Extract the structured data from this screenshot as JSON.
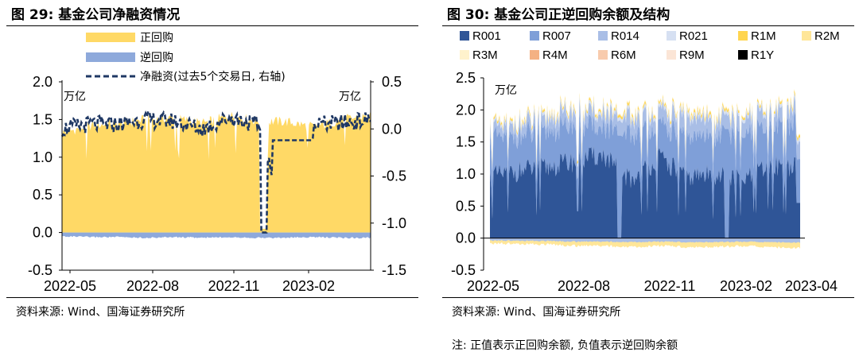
{
  "figures": {
    "left": {
      "title": "图 29:  基金公司净融资情况",
      "source": "资料来源: Wind、国海证券研究所",
      "left_unit": "万亿",
      "right_unit": "万亿"
    },
    "right": {
      "title": "图 30:  基金公司正逆回购余额及结构",
      "source": "资料来源: Wind、国海证券研究所",
      "note": "注: 正值表示正回购余额, 负值表示逆回购余额",
      "unit": "万亿"
    }
  },
  "colors": {
    "zheng": "#FFD966",
    "ni": "#8EA9DB",
    "net": "#1F3864",
    "R001": "#2F5597",
    "R007": "#7F9FD8",
    "R014": "#A9BEE6",
    "R021": "#D6E0F2",
    "R1M": "#FFD54F",
    "R2M": "#FFE699",
    "R3M": "#FFF2CC",
    "R4M": "#F4B183",
    "R6M": "#F8CBAD",
    "R9M": "#FBE5D6",
    "R1Y": "#000000"
  },
  "chart_data": [
    {
      "type": "area",
      "x_range": [
        "2022-05",
        "2023-04"
      ],
      "xticks": [
        "2022-05",
        "2022-08",
        "2022-11",
        "2023-02"
      ],
      "ylim": [
        -0.5,
        2.0
      ],
      "yticks": [
        "-0.5",
        "0.0",
        "0.5",
        "1.0",
        "1.5",
        "2.0"
      ],
      "y2lim": [
        -1.5,
        0.5
      ],
      "y2ticks": [
        "-1.5",
        "-1.0",
        "-0.5",
        "0.0",
        "0.5"
      ],
      "x": [
        "2022-05",
        "2022-06",
        "2022-07",
        "2022-08",
        "2022-09",
        "2022-10",
        "2022-11",
        "2022-12",
        "2023-01",
        "2023-02",
        "2023-03",
        "2023-04"
      ],
      "series": [
        {
          "name": "正回购",
          "axis": "left",
          "values": [
            1.32,
            1.42,
            1.45,
            1.5,
            1.52,
            1.45,
            1.55,
            1.48,
            1.47,
            1.4,
            1.5,
            1.55
          ]
        },
        {
          "name": "逆回购",
          "axis": "left",
          "values": [
            -0.04,
            -0.05,
            -0.05,
            -0.06,
            -0.05,
            -0.06,
            -0.05,
            -0.06,
            -0.06,
            -0.05,
            -0.06,
            -0.06
          ]
        },
        {
          "name": "净融资(过去5个交易日, 右轴)",
          "axis": "right",
          "values": [
            0.0,
            0.05,
            0.05,
            0.1,
            0.08,
            0.0,
            0.12,
            0.04,
            -1.1,
            0.05,
            0.06,
            0.1
          ]
        }
      ],
      "legend": [
        "正回购",
        "逆回购",
        "净融资(过去5个交易日, 右轴)"
      ]
    },
    {
      "type": "area",
      "x_range": [
        "2022-05",
        "2023-04"
      ],
      "xticks": [
        "2022-05",
        "2022-08",
        "2022-11",
        "2023-02",
        "2023-04"
      ],
      "ylim": [
        -0.5,
        2.5
      ],
      "yticks": [
        "-0.5",
        "0.0",
        "0.5",
        "1.0",
        "1.5",
        "2.0",
        "2.5"
      ],
      "x": [
        "2022-05",
        "2022-06",
        "2022-07",
        "2022-08",
        "2022-09",
        "2022-10",
        "2022-11",
        "2022-12",
        "2023-01",
        "2023-02",
        "2023-03",
        "2023-04"
      ],
      "series": [
        {
          "name": "R001",
          "values": [
            0.95,
            1.05,
            1.1,
            1.2,
            1.3,
            0.9,
            1.25,
            0.95,
            1.0,
            0.9,
            1.15,
            1.1
          ]
        },
        {
          "name": "R007",
          "values": [
            0.55,
            0.55,
            0.55,
            0.55,
            0.45,
            0.7,
            0.5,
            0.6,
            0.65,
            0.7,
            0.6,
            0.7
          ]
        },
        {
          "name": "R014",
          "values": [
            0.15,
            0.15,
            0.18,
            0.2,
            0.2,
            0.25,
            0.2,
            0.28,
            0.22,
            0.25,
            0.22,
            0.25
          ]
        },
        {
          "name": "R021",
          "values": [
            0.04,
            0.04,
            0.05,
            0.05,
            0.05,
            0.05,
            0.05,
            0.06,
            0.05,
            0.05,
            0.05,
            0.06
          ]
        },
        {
          "name": "R1M",
          "values": [
            0.03,
            0.03,
            0.03,
            0.03,
            0.03,
            0.04,
            0.03,
            0.04,
            0.04,
            0.03,
            0.03,
            0.04
          ]
        },
        {
          "name": "R2M",
          "values": [
            0.01,
            0.01,
            0.01,
            0.01,
            0.01,
            0.01,
            0.01,
            0.01,
            0.01,
            0.01,
            0.01,
            0.01
          ]
        },
        {
          "name": "R3M",
          "values": [
            0.01,
            0.01,
            0.01,
            0.01,
            0.01,
            0.01,
            0.01,
            0.01,
            0.01,
            0.01,
            0.01,
            0.01
          ]
        },
        {
          "name": "R4M",
          "values": [
            0,
            0,
            0,
            0,
            0,
            0,
            0,
            0,
            0,
            0,
            0,
            0
          ]
        },
        {
          "name": "R6M",
          "values": [
            0,
            0,
            0,
            0,
            0,
            0,
            0,
            0,
            0,
            0,
            0,
            0
          ]
        },
        {
          "name": "R9M",
          "values": [
            0,
            0,
            0,
            0,
            0,
            0,
            0,
            0,
            0,
            0,
            0,
            0
          ]
        },
        {
          "name": "R1Y",
          "values": [
            0,
            0,
            0,
            0,
            0,
            0,
            0,
            0,
            0,
            0,
            0,
            0
          ]
        }
      ],
      "negative_total": [
        -0.06,
        -0.07,
        -0.08,
        -0.1,
        -0.1,
        -0.12,
        -0.1,
        -0.12,
        -0.12,
        -0.1,
        -0.12,
        -0.14
      ],
      "legend": [
        "R001",
        "R007",
        "R014",
        "R021",
        "R1M",
        "R2M",
        "R3M",
        "R4M",
        "R6M",
        "R9M",
        "R1Y"
      ]
    }
  ]
}
